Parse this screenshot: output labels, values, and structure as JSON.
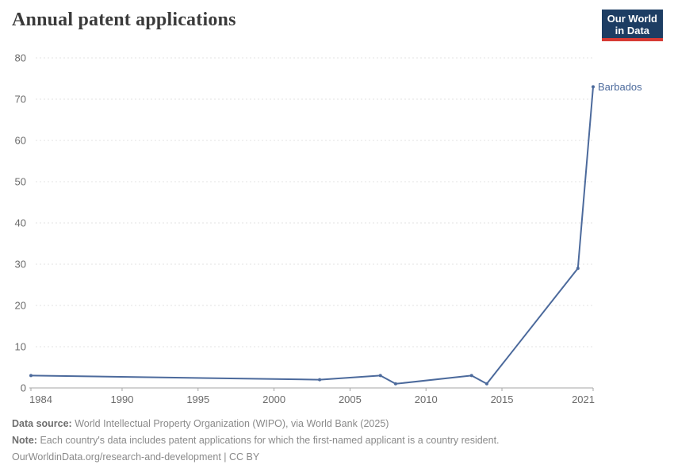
{
  "header": {
    "logo": {
      "line1": "Our World",
      "line2": "in Data",
      "bg_color": "#1d3d63",
      "accent_color": "#d73a34"
    }
  },
  "chart_data": {
    "type": "line",
    "title": "Annual patent applications",
    "series": [
      {
        "name": "Barbados",
        "color": "#4c6a9c",
        "points": [
          {
            "x": 1984,
            "y": 3
          },
          {
            "x": 2003,
            "y": 2
          },
          {
            "x": 2007,
            "y": 3
          },
          {
            "x": 2008,
            "y": 1
          },
          {
            "x": 2013,
            "y": 3
          },
          {
            "x": 2014,
            "y": 1
          },
          {
            "x": 2020,
            "y": 29
          },
          {
            "x": 2021,
            "y": 73
          }
        ]
      }
    ],
    "xlim": [
      1984,
      2021
    ],
    "ylim": [
      0,
      80
    ],
    "x_ticks": [
      1984,
      1990,
      1995,
      2000,
      2005,
      2010,
      2015,
      2021
    ],
    "y_ticks": [
      0,
      10,
      20,
      30,
      40,
      50,
      60,
      70,
      80
    ],
    "grid": "horizontal-dashed",
    "legend_position": "end-of-line-label",
    "colors": {
      "gridline": "#e3e3e3",
      "axis": "#a6a6a6",
      "tick_text": "#6b6b6b"
    }
  },
  "footer": {
    "data_source_label": "Data source:",
    "data_source_text": "World Intellectual Property Organization (WIPO), via World Bank (2025)",
    "note_label": "Note:",
    "note_text": "Each country's data includes patent applications for which the first-named applicant is a country resident.",
    "license_text": "OurWorldinData.org/research-and-development | CC BY"
  }
}
